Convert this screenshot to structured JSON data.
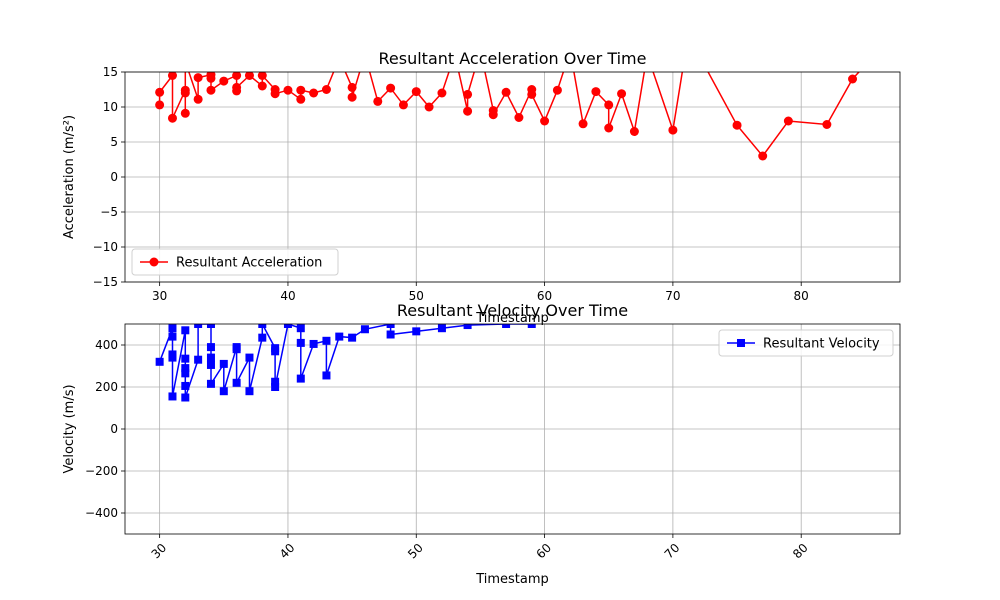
{
  "chart_data": [
    {
      "type": "line",
      "title": "Resultant Acceleration Over Time",
      "xlabel": "Timestamp",
      "ylabel": "Acceleration (m/s²)",
      "xlim": [
        27.3,
        87.7
      ],
      "ylim": [
        -15,
        15
      ],
      "xticks": [
        30,
        40,
        50,
        60,
        70,
        80
      ],
      "yticks": [
        -15,
        -10,
        -5,
        0,
        5,
        10,
        15
      ],
      "grid": true,
      "legend_position": "lower-left",
      "series": [
        {
          "name": "Resultant Acceleration",
          "color": "#ff0000",
          "marker": "circle",
          "x": [
            30,
            30,
            31,
            31,
            32,
            32,
            32,
            32,
            33,
            33,
            34,
            34,
            34,
            35,
            36,
            36,
            36,
            37,
            38,
            38,
            39,
            39,
            40,
            41,
            41,
            42,
            43,
            44,
            45,
            45,
            46,
            47,
            48,
            49,
            50,
            51,
            52,
            53,
            54,
            54,
            55,
            56,
            56,
            57,
            58,
            59,
            59,
            60,
            61,
            62,
            63,
            64,
            65,
            65,
            66,
            67,
            68,
            70,
            71,
            72,
            75,
            77,
            79,
            82,
            84,
            86
          ],
          "y": [
            10.3,
            12.1,
            14.5,
            8.4,
            12.4,
            12.0,
            9.1,
            16.5,
            11.1,
            14.2,
            14.6,
            14.1,
            12.4,
            13.7,
            14.5,
            12.3,
            12.8,
            14.5,
            13.0,
            14.5,
            12.5,
            11.9,
            12.4,
            11.1,
            12.4,
            12.0,
            12.5,
            17.0,
            12.8,
            11.4,
            17.5,
            10.8,
            12.7,
            10.3,
            12.2,
            10.0,
            12.0,
            17.5,
            9.4,
            11.8,
            18.0,
            9.5,
            8.9,
            12.1,
            8.5,
            12.5,
            11.8,
            8.0,
            12.4,
            18.0,
            7.6,
            12.2,
            10.3,
            7.0,
            11.9,
            6.5,
            17.5,
            6.7,
            18.0,
            17.5,
            7.4,
            3.0,
            8.0,
            7.5,
            14.0,
            18.0
          ]
        }
      ]
    },
    {
      "type": "line",
      "title": "Resultant Velocity Over Time",
      "xlabel": "Timestamp",
      "ylabel": "Velocity (m/s)",
      "xlim": [
        27.3,
        87.7
      ],
      "ylim": [
        -500,
        500
      ],
      "xticks": [
        30,
        40,
        50,
        60,
        70,
        80
      ],
      "yticks": [
        -400,
        -200,
        0,
        200,
        400
      ],
      "grid": true,
      "legend_position": "upper-right",
      "series": [
        {
          "name": "Resultant Velocity",
          "color": "#0000ff",
          "marker": "square",
          "x": [
            30,
            31,
            31,
            31,
            31,
            31,
            32,
            32,
            32,
            32,
            32,
            32,
            33,
            33,
            34,
            34,
            34,
            34,
            34,
            35,
            35,
            36,
            36,
            36,
            37,
            37,
            38,
            38,
            39,
            39,
            39,
            39,
            40,
            41,
            41,
            41,
            42,
            43,
            43,
            44,
            45,
            46,
            48,
            48,
            50,
            52,
            54,
            57,
            59
          ],
          "y": [
            320,
            480,
            440,
            355,
            340,
            155,
            470,
            335,
            290,
            265,
            205,
            150,
            330,
            500,
            500,
            390,
            340,
            305,
            215,
            310,
            180,
            390,
            380,
            220,
            340,
            180,
            435,
            500,
            385,
            370,
            225,
            200,
            500,
            480,
            410,
            240,
            405,
            420,
            255,
            440,
            435,
            475,
            500,
            450,
            465,
            480,
            495,
            500,
            500
          ]
        }
      ]
    }
  ]
}
